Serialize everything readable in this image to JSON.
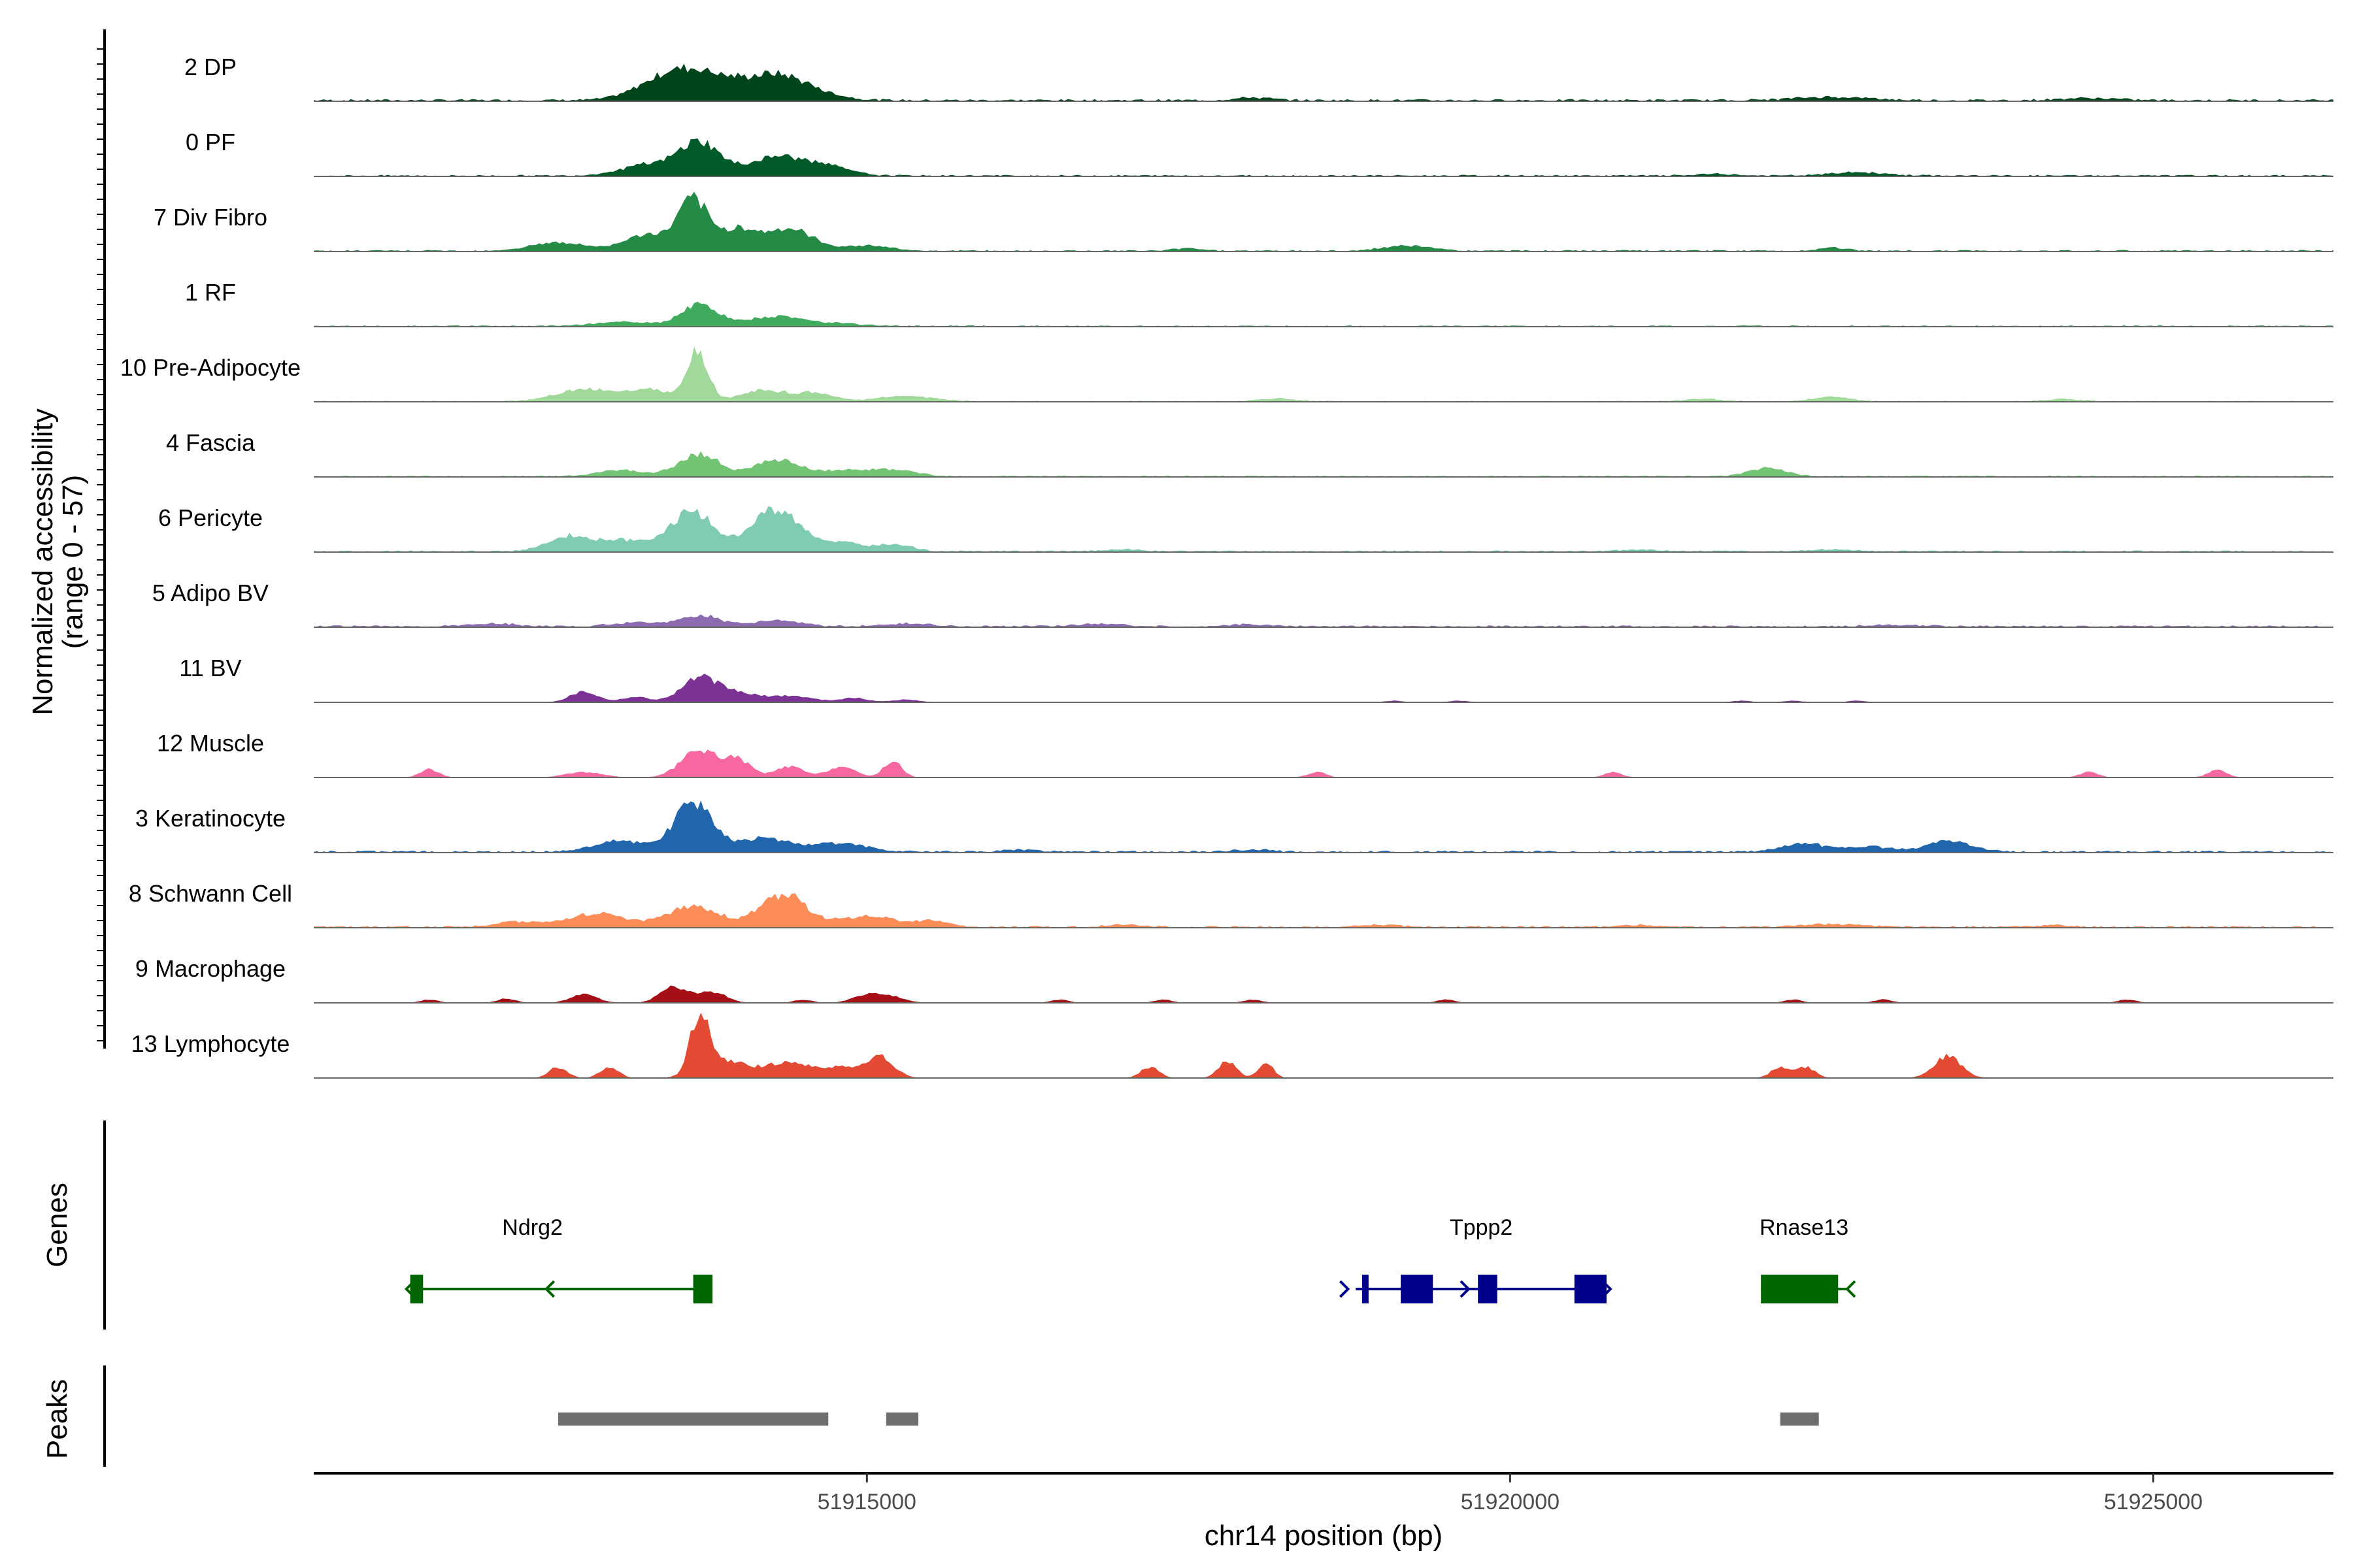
{
  "chart_data": {
    "type": "area",
    "xlabel": "chr14 position (bp)",
    "xlim": [
      51910700,
      51926400
    ],
    "xticks": [
      51915000,
      51920000,
      51925000
    ],
    "xtick_labels": [
      "51915000",
      "51920000",
      "51925000"
    ],
    "panels": {
      "coverage_label": "Normalized accessibility\n(range 0 - 57)",
      "genes_label": "Genes",
      "peaks_label": "Peaks"
    },
    "y_range": [
      0,
      57
    ],
    "tracks": [
      {
        "name": "2 DP",
        "color": "#00441b",
        "baseline": 0.4,
        "peaks": [
          [
            51913700,
            5,
            400
          ],
          [
            51914300,
            4,
            300
          ],
          [
            51913400,
            2,
            300
          ],
          [
            51914600,
            1,
            300
          ],
          [
            51918000,
            0.5,
            200
          ],
          [
            51922500,
            0.6,
            400
          ],
          [
            51924500,
            0.4,
            300
          ]
        ]
      },
      {
        "name": "0 PF",
        "color": "#005a28",
        "baseline": 0.3,
        "peaks": [
          [
            51913700,
            6,
            220
          ],
          [
            51914300,
            3.5,
            300
          ],
          [
            51913300,
            2,
            300
          ],
          [
            51914700,
            1.5,
            250
          ],
          [
            51922700,
            0.6,
            300
          ],
          [
            51921600,
            0.3,
            200
          ]
        ]
      },
      {
        "name": "7 Div Fibro",
        "color": "#238b45",
        "baseline": 0.3,
        "peaks": [
          [
            51913650,
            9,
            160
          ],
          [
            51914000,
            4,
            200
          ],
          [
            51914400,
            4,
            250
          ],
          [
            51913300,
            3,
            250
          ],
          [
            51912600,
            1.5,
            300
          ],
          [
            51915000,
            1,
            250
          ],
          [
            51919200,
            1,
            250
          ],
          [
            51922500,
            0.6,
            150
          ],
          [
            51917500,
            0.5,
            150
          ]
        ]
      },
      {
        "name": "1 RF",
        "color": "#41ab5d",
        "baseline": 0.25,
        "peaks": [
          [
            51913700,
            4,
            200
          ],
          [
            51914300,
            1.8,
            300
          ],
          [
            51913100,
            0.8,
            300
          ],
          [
            51914800,
            0.5,
            250
          ]
        ]
      },
      {
        "name": "10 Pre-Adipocyte",
        "color": "#a1d99b",
        "baseline": 0.2,
        "peaks": [
          [
            51913680,
            9,
            120
          ],
          [
            51913300,
            2.2,
            250
          ],
          [
            51912800,
            2.2,
            300
          ],
          [
            51914200,
            2,
            250
          ],
          [
            51914600,
            1.5,
            200
          ],
          [
            51915300,
            1,
            300
          ],
          [
            51922500,
            0.8,
            200
          ],
          [
            51921500,
            0.5,
            200
          ],
          [
            51918200,
            0.5,
            200
          ],
          [
            51924300,
            0.4,
            200
          ]
        ]
      },
      {
        "name": "4 Fascia",
        "color": "#74c476",
        "baseline": 0.25,
        "peaks": [
          [
            51913700,
            4,
            220
          ],
          [
            51914300,
            3,
            250
          ],
          [
            51913100,
            1.2,
            250
          ],
          [
            51914800,
            1,
            250
          ],
          [
            51915200,
            1.2,
            250
          ],
          [
            51922000,
            1.5,
            200
          ]
        ]
      },
      {
        "name": "6 Pericyte",
        "color": "#7fccb3",
        "baseline": 0.3,
        "peaks": [
          [
            51913650,
            7.5,
            230
          ],
          [
            51914300,
            8,
            260
          ],
          [
            51912700,
            2.8,
            250
          ],
          [
            51913150,
            2,
            250
          ],
          [
            51914800,
            1.5,
            200
          ],
          [
            51915200,
            1.4,
            200
          ],
          [
            51917000,
            0.4,
            200
          ],
          [
            51922500,
            0.4,
            200
          ],
          [
            51921000,
            0.3,
            200
          ]
        ]
      },
      {
        "name": "5 Adipo BV",
        "color": "#8c6bb1",
        "baseline": 0.35,
        "peaks": [
          [
            51913700,
            2,
            220
          ],
          [
            51914300,
            1.2,
            250
          ],
          [
            51913200,
            0.8,
            250
          ],
          [
            51912100,
            0.5,
            250
          ],
          [
            51915300,
            0.5,
            250
          ],
          [
            51916800,
            0.5,
            250
          ],
          [
            51918000,
            0.4,
            200
          ],
          [
            51923000,
            0.3,
            250
          ]
        ]
      },
      {
        "name": "11 BV",
        "color": "#7b3294",
        "baseline": 0,
        "peaks": [
          [
            51913700,
            4.5,
            200
          ],
          [
            51912800,
            2,
            150
          ],
          [
            51913200,
            1,
            150
          ],
          [
            51914000,
            1.5,
            200
          ],
          [
            51914400,
            1.2,
            250
          ],
          [
            51914900,
            0.8,
            150
          ],
          [
            51915300,
            0.5,
            150
          ],
          [
            51919100,
            0.3,
            100
          ],
          [
            51919600,
            0.3,
            100
          ],
          [
            51921800,
            0.3,
            100
          ],
          [
            51922200,
            0.3,
            100
          ],
          [
            51922700,
            0.3,
            100
          ]
        ]
      },
      {
        "name": "12 Muscle",
        "color": "#f768a1",
        "baseline": 0,
        "peaks": [
          [
            51913700,
            5,
            200
          ],
          [
            51914000,
            3,
            150
          ],
          [
            51912800,
            1,
            200
          ],
          [
            51914400,
            2,
            150
          ],
          [
            51914800,
            2,
            150
          ],
          [
            51915200,
            3,
            100
          ],
          [
            51911600,
            1.5,
            100
          ],
          [
            51918500,
            1,
            100
          ],
          [
            51920800,
            1,
            100
          ],
          [
            51924500,
            1,
            100
          ],
          [
            51925500,
            1.5,
            100
          ]
        ]
      },
      {
        "name": "3 Keratinocyte",
        "color": "#2166ac",
        "baseline": 0.35,
        "peaks": [
          [
            51913650,
            9,
            200
          ],
          [
            51914200,
            2.5,
            300
          ],
          [
            51913100,
            2,
            300
          ],
          [
            51914800,
            1.5,
            300
          ],
          [
            51916200,
            0.4,
            200
          ],
          [
            51918000,
            0.4,
            200
          ],
          [
            51922300,
            1.5,
            250
          ],
          [
            51922800,
            1,
            200
          ],
          [
            51923400,
            2,
            250
          ]
        ]
      },
      {
        "name": "8 Schwann Cell",
        "color": "#fc8d59",
        "baseline": 0.35,
        "peaks": [
          [
            51914350,
            6,
            250
          ],
          [
            51913650,
            4,
            280
          ],
          [
            51912900,
            2.5,
            300
          ],
          [
            51912300,
            1,
            250
          ],
          [
            51915000,
            2,
            300
          ],
          [
            51915500,
            1,
            200
          ],
          [
            51917000,
            0.4,
            200
          ],
          [
            51919000,
            0.4,
            200
          ],
          [
            51921000,
            0.4,
            200
          ],
          [
            51922500,
            0.5,
            300
          ],
          [
            51924200,
            0.3,
            200
          ]
        ]
      },
      {
        "name": "9 Macrophage",
        "color": "#a50f15",
        "baseline": 0,
        "peaks": [
          [
            51913500,
            3,
            150
          ],
          [
            51913800,
            2,
            150
          ],
          [
            51912800,
            1.5,
            150
          ],
          [
            51912200,
            0.8,
            100
          ],
          [
            51911600,
            0.6,
            100
          ],
          [
            51915000,
            1.5,
            150
          ],
          [
            51915200,
            1,
            150
          ],
          [
            51914500,
            0.6,
            100
          ],
          [
            51916500,
            0.6,
            100
          ],
          [
            51917300,
            0.6,
            100
          ],
          [
            51918000,
            0.6,
            100
          ],
          [
            51919500,
            0.6,
            100
          ],
          [
            51922200,
            0.6,
            100
          ],
          [
            51922900,
            0.6,
            100
          ],
          [
            51924800,
            0.6,
            100
          ]
        ]
      },
      {
        "name": "13 Lymphocyte",
        "color": "#e34a33",
        "baseline": 0,
        "peaks": [
          [
            51913700,
            11,
            100
          ],
          [
            51913900,
            3,
            250
          ],
          [
            51914400,
            3,
            250
          ],
          [
            51914800,
            2,
            150
          ],
          [
            51915100,
            4,
            150
          ],
          [
            51912600,
            2,
            100
          ],
          [
            51913000,
            2,
            100
          ],
          [
            51917200,
            2,
            100
          ],
          [
            51917800,
            3,
            100
          ],
          [
            51918100,
            3,
            80
          ],
          [
            51922100,
            2,
            100
          ],
          [
            51922300,
            2,
            100
          ],
          [
            51923400,
            4,
            150
          ]
        ]
      }
    ],
    "genes": [
      {
        "name": "Ndrg2",
        "color": "#006400",
        "strand": "-",
        "start": 51911450,
        "end": 51913800,
        "exons": [
          [
            51911450,
            51911550
          ],
          [
            51913650,
            51913800
          ]
        ]
      },
      {
        "name": "Tppp2",
        "color": "#00008b",
        "strand": "+",
        "start": 51918800,
        "end": 51920750,
        "exons": [
          [
            51918850,
            51918900
          ],
          [
            51919150,
            51919400
          ],
          [
            51919750,
            51919900
          ],
          [
            51920500,
            51920750
          ]
        ]
      },
      {
        "name": "Rnase13",
        "color": "#006400",
        "strand": "-",
        "start": 51921950,
        "end": 51922620,
        "exons": [
          [
            51921950,
            51922550
          ]
        ]
      }
    ],
    "peaks": [
      {
        "start": 51912600,
        "end": 51914700
      },
      {
        "start": 51915150,
        "end": 51915400
      },
      {
        "start": 51922100,
        "end": 51922400
      }
    ]
  }
}
